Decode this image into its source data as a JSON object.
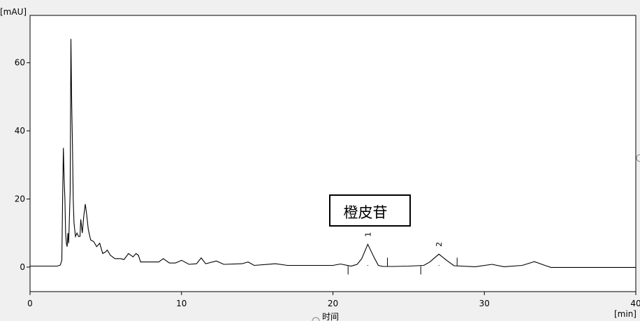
{
  "chart_data": {
    "type": "line",
    "title": "",
    "xlabel": "时间",
    "x_unit": "[min]",
    "y_unit": "[mAU]",
    "xlim": [
      0,
      40
    ],
    "ylim": [
      -7.2,
      73.9
    ],
    "xticks": [
      0,
      10,
      20,
      30,
      40
    ],
    "yticks": [
      0,
      20,
      40,
      60
    ],
    "grid": false,
    "line_color": "#000000",
    "background": "#ffffff",
    "annotation": "橙皮苷",
    "peaks": [
      {
        "label": "1",
        "t": 22.3,
        "value": 6.7
      },
      {
        "label": "2",
        "t": 27.0,
        "value": 3.8
      }
    ],
    "integration_marks": [
      {
        "t": 21.0,
        "dir": "down"
      },
      {
        "t": 23.6,
        "dir": "up"
      },
      {
        "t": 25.8,
        "dir": "down"
      },
      {
        "t": 28.2,
        "dir": "up"
      }
    ],
    "series": [
      {
        "points": [
          [
            0,
            0.3
          ],
          [
            1.8,
            0.3
          ],
          [
            2.0,
            0.6
          ],
          [
            2.1,
            2
          ],
          [
            2.15,
            20
          ],
          [
            2.2,
            35
          ],
          [
            2.25,
            26
          ],
          [
            2.3,
            20
          ],
          [
            2.35,
            10
          ],
          [
            2.4,
            7
          ],
          [
            2.45,
            6
          ],
          [
            2.5,
            10
          ],
          [
            2.55,
            7
          ],
          [
            2.6,
            15
          ],
          [
            2.65,
            22
          ],
          [
            2.7,
            67
          ],
          [
            2.75,
            48
          ],
          [
            2.8,
            36
          ],
          [
            2.85,
            20
          ],
          [
            2.9,
            13
          ],
          [
            3.0,
            9
          ],
          [
            3.1,
            10
          ],
          [
            3.2,
            9
          ],
          [
            3.3,
            9
          ],
          [
            3.35,
            14
          ],
          [
            3.45,
            10
          ],
          [
            3.55,
            15
          ],
          [
            3.65,
            18.5
          ],
          [
            3.75,
            15
          ],
          [
            3.85,
            11
          ],
          [
            4.0,
            8
          ],
          [
            4.2,
            7.5
          ],
          [
            4.4,
            6
          ],
          [
            4.6,
            7
          ],
          [
            4.8,
            4
          ],
          [
            5.0,
            4.5
          ],
          [
            5.1,
            5
          ],
          [
            5.3,
            3.5
          ],
          [
            5.6,
            2.5
          ],
          [
            6.0,
            2.5
          ],
          [
            6.2,
            2.2
          ],
          [
            6.5,
            4
          ],
          [
            6.8,
            3
          ],
          [
            7.0,
            4
          ],
          [
            7.15,
            3.5
          ],
          [
            7.3,
            1.5
          ],
          [
            8.5,
            1.5
          ],
          [
            8.8,
            2.5
          ],
          [
            9.2,
            1.2
          ],
          [
            9.6,
            1.2
          ],
          [
            10.0,
            2
          ],
          [
            10.5,
            0.8
          ],
          [
            11.0,
            1
          ],
          [
            11.3,
            2.7
          ],
          [
            11.6,
            1
          ],
          [
            12.3,
            1.8
          ],
          [
            12.8,
            0.8
          ],
          [
            14.0,
            1
          ],
          [
            14.4,
            1.5
          ],
          [
            14.8,
            0.5
          ],
          [
            16.2,
            1
          ],
          [
            17.0,
            0.5
          ],
          [
            20.0,
            0.5
          ],
          [
            20.5,
            0.9
          ],
          [
            21.2,
            0.3
          ],
          [
            21.6,
            0.8
          ],
          [
            21.9,
            2.5
          ],
          [
            22.3,
            6.7
          ],
          [
            22.7,
            3
          ],
          [
            23.0,
            0.5
          ],
          [
            23.3,
            0.2
          ],
          [
            24.0,
            0.2
          ],
          [
            25.0,
            0.3
          ],
          [
            26.0,
            0.5
          ],
          [
            26.4,
            1.5
          ],
          [
            27.0,
            3.8
          ],
          [
            27.5,
            2
          ],
          [
            28.0,
            0.4
          ],
          [
            29.4,
            0.1
          ],
          [
            30.5,
            0.8
          ],
          [
            31.3,
            0.1
          ],
          [
            32.5,
            0.5
          ],
          [
            33.3,
            1.6
          ],
          [
            34.0,
            0.5
          ],
          [
            34.4,
            -0.1
          ],
          [
            40,
            -0.1
          ]
        ]
      }
    ]
  }
}
